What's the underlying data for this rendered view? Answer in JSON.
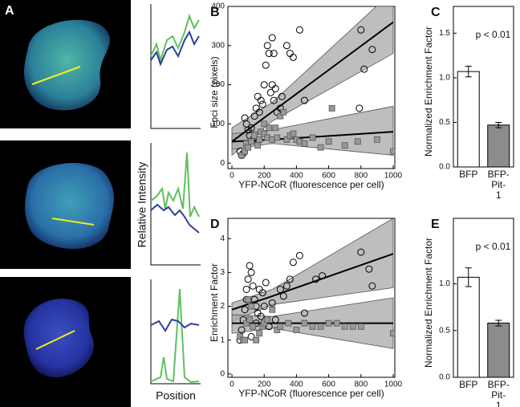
{
  "figure_a": {
    "panel_label": "A",
    "y_label": "Relative Intensity",
    "x_label": "Position"
  },
  "chart_data": [
    {
      "type": "scatter",
      "panel_label": "B",
      "x_label": "YFP-NCoR (fluorescence per cell)",
      "y_label": "Foci size (pixels)",
      "xlim": [
        -25,
        1010
      ],
      "xticks": [
        0,
        200,
        400,
        600,
        800,
        1000
      ],
      "ylim": [
        -14,
        400
      ],
      "yticks": [
        0,
        100,
        200,
        300,
        400
      ],
      "series": [
        {
          "marker": "circle",
          "color": "#000000",
          "x": [
            50,
            60,
            70,
            80,
            90,
            100,
            110,
            120,
            130,
            140,
            150,
            160,
            170,
            180,
            190,
            200,
            210,
            220,
            230,
            240,
            250,
            260,
            270,
            280,
            300,
            310,
            340,
            360,
            380,
            420,
            450,
            790,
            800,
            820,
            870,
            250,
            260
          ],
          "values": [
            30,
            20,
            25,
            115,
            100,
            85,
            70,
            90,
            60,
            120,
            140,
            170,
            130,
            160,
            150,
            200,
            250,
            300,
            280,
            180,
            200,
            160,
            190,
            130,
            140,
            170,
            300,
            280,
            270,
            340,
            160,
            140,
            340,
            240,
            290,
            320,
            280
          ],
          "fit": {
            "x": [
              0,
              250,
              1000
            ],
            "values": [
              55,
              131,
              360
            ],
            "upper": [
              90,
              155,
              440
            ],
            "lower": [
              20,
              107,
              280
            ]
          }
        },
        {
          "marker": "square",
          "color": "#999999",
          "x": [
            60,
            80,
            90,
            100,
            120,
            140,
            160,
            170,
            180,
            200,
            220,
            250,
            270,
            280,
            300,
            320,
            340,
            360,
            380,
            400,
            420,
            450,
            500,
            550,
            600,
            620,
            700,
            780,
            900,
            1000,
            200,
            230
          ],
          "values": [
            20,
            30,
            50,
            40,
            55,
            70,
            45,
            60,
            80,
            75,
            65,
            60,
            90,
            65,
            120,
            130,
            60,
            70,
            75,
            60,
            55,
            50,
            65,
            40,
            55,
            140,
            45,
            55,
            60,
            30,
            100,
            90
          ],
          "fit": {
            "x": [
              0,
              250,
              1000
            ],
            "values": [
              55,
              60,
              80
            ],
            "upper": [
              75,
              85,
              145
            ],
            "lower": [
              35,
              50,
              20
            ]
          }
        }
      ]
    },
    {
      "type": "bar",
      "panel_label": "C",
      "y_label": "Normalized Enrichment Factor",
      "annotation": "p < 0.01",
      "categories": [
        "BFP",
        "BFP-Pit-1"
      ],
      "values": [
        1.07,
        0.47
      ],
      "errors": [
        0.06,
        0.03
      ],
      "colors": [
        "#ffffff",
        "#8c8c8c"
      ],
      "ylim": [
        0,
        1.8
      ],
      "yticks": [
        {
          "value": 0,
          "label": "0.0"
        },
        0.5,
        {
          "value": 1,
          "label": "1.0"
        },
        1.5
      ]
    },
    {
      "type": "scatter",
      "panel_label": "D",
      "x_label": "YFP-NCoR (fluorescence per cell)",
      "y_label": "Enrichment Factor",
      "xlim": [
        -25,
        1010
      ],
      "xticks": [
        0,
        200,
        400,
        600,
        800,
        1000
      ],
      "ylim": [
        -0.1,
        4.6
      ],
      "yticks": [
        0,
        1,
        2,
        3,
        4
      ],
      "series": [
        {
          "marker": "circle",
          "color": "#000000",
          "x": [
            50,
            60,
            70,
            80,
            90,
            100,
            110,
            120,
            130,
            140,
            150,
            160,
            170,
            180,
            190,
            200,
            210,
            230,
            250,
            270,
            300,
            320,
            340,
            360,
            380,
            420,
            450,
            520,
            560,
            800,
            870,
            850,
            90,
            120,
            150
          ],
          "values": [
            1.0,
            1.3,
            1.6,
            1.9,
            2.5,
            2.8,
            3.2,
            3.0,
            2.6,
            2.2,
            2.0,
            1.8,
            2.5,
            1.7,
            2.4,
            2.0,
            2.7,
            1.4,
            2.1,
            1.6,
            2.5,
            2.3,
            2.6,
            2.8,
            3.3,
            3.5,
            1.8,
            2.8,
            2.9,
            3.6,
            2.6,
            3.1,
            2.2,
            1.1,
            1.5
          ],
          "fit": {
            "x": [
              0,
              250,
              1000
            ],
            "values": [
              1.9,
              2.3,
              3.55
            ],
            "upper": [
              2.1,
              2.5,
              4.6
            ],
            "lower": [
              1.55,
              2.05,
              2.55
            ]
          }
        },
        {
          "marker": "square",
          "color": "#999999",
          "x": [
            50,
            70,
            90,
            100,
            110,
            130,
            150,
            170,
            190,
            200,
            220,
            250,
            280,
            300,
            350,
            400,
            450,
            500,
            550,
            600,
            650,
            700,
            750,
            800,
            1000,
            80,
            120
          ],
          "values": [
            1.1,
            1.0,
            1.5,
            2.2,
            1.6,
            1.4,
            1.0,
            1.2,
            1.4,
            1.5,
            1.6,
            1.9,
            1.3,
            1.4,
            1.5,
            1.3,
            1.5,
            1.4,
            1.4,
            1.5,
            1.5,
            1.4,
            1.4,
            1.4,
            1.2,
            1.0,
            2.0
          ],
          "fit": {
            "x": [
              0,
              250,
              1000
            ],
            "values": [
              1.5,
              1.5,
              1.5
            ],
            "upper": [
              1.75,
              1.7,
              2.25
            ],
            "lower": [
              1.2,
              1.35,
              0.75
            ]
          }
        }
      ]
    },
    {
      "type": "bar",
      "panel_label": "E",
      "y_label": "Normalized Enrichment Factor",
      "annotation": "p < 0.01",
      "categories": [
        "BFP",
        "BFP-Pit-1"
      ],
      "values": [
        1.07,
        0.58
      ],
      "errors": [
        0.1,
        0.03
      ],
      "colors": [
        "#ffffff",
        "#8c8c8c"
      ],
      "ylim": [
        0,
        1.7
      ],
      "yticks": [
        {
          "value": 0,
          "label": "0.0"
        },
        0.5,
        {
          "value": 1,
          "label": "1.0"
        }
      ]
    }
  ]
}
